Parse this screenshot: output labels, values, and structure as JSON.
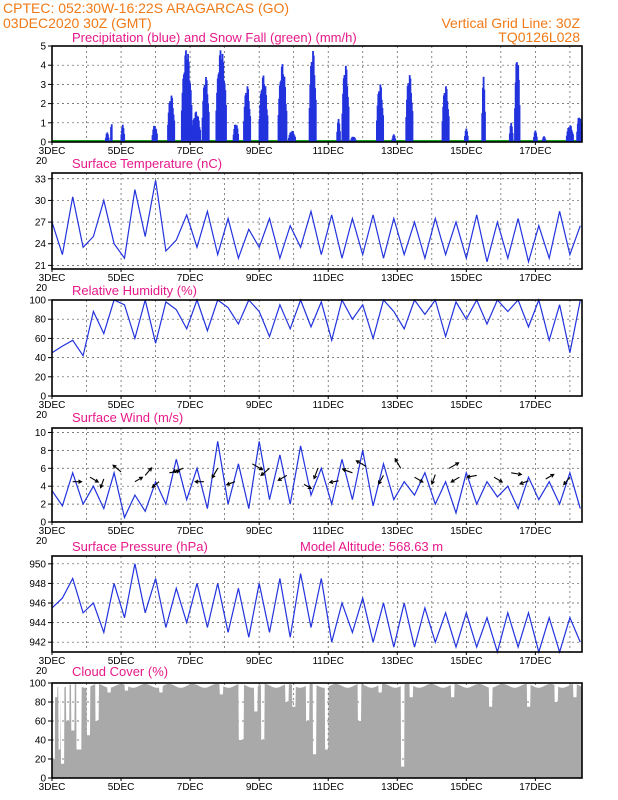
{
  "header": {
    "line1_left": "CPTEC:   052:30W-16:22S   ARAGARCAS (GO)",
    "line2_left": "03DEC2020 30Z (GMT)",
    "line1_right": "Vertical Grid Line: 30Z",
    "line2_right": "TQ0126L028"
  },
  "colors": {
    "header": "#f07a17",
    "title": "#e6198a",
    "series": "#2233dd",
    "snow": "#1aa01a",
    "cloud": "#a9a9a9"
  },
  "x_axis": {
    "days": [
      3,
      18.35
    ],
    "labels": [
      {
        "day": 3,
        "text": "3DEC"
      },
      {
        "day": 5,
        "text": "5DEC"
      },
      {
        "day": 7,
        "text": "7DEC"
      },
      {
        "day": 9,
        "text": "9DEC"
      },
      {
        "day": 11,
        "text": "11DEC"
      },
      {
        "day": 13,
        "text": "13DEC"
      },
      {
        "day": 15,
        "text": "15DEC"
      },
      {
        "day": 17,
        "text": "17DEC"
      }
    ],
    "year_fragment": "20"
  },
  "chart_data": [
    {
      "id": "precip",
      "type": "bar",
      "title": "Precipitation (blue) and Snow Fall (green) (mm/h)",
      "ylim": [
        0,
        5
      ],
      "yticks": [
        0,
        1,
        2,
        3,
        4,
        5
      ],
      "bursts": [
        [
          4.55,
          4.65,
          0.5
        ],
        [
          4.7,
          4.74,
          1.2
        ],
        [
          5.0,
          5.1,
          0.9
        ],
        [
          5.9,
          6.05,
          0.9
        ],
        [
          6.35,
          6.55,
          2.5
        ],
        [
          6.75,
          7.05,
          4.9
        ],
        [
          7.05,
          7.3,
          1.6
        ],
        [
          7.35,
          7.55,
          3.5
        ],
        [
          7.75,
          8.05,
          4.9
        ],
        [
          8.25,
          8.4,
          1.0
        ],
        [
          8.55,
          8.75,
          3.0
        ],
        [
          9.0,
          9.25,
          3.5
        ],
        [
          9.55,
          9.8,
          4.1
        ],
        [
          9.85,
          10.05,
          0.6
        ],
        [
          10.45,
          10.65,
          4.9
        ],
        [
          11.25,
          11.35,
          1.2
        ],
        [
          11.4,
          11.6,
          4.1
        ],
        [
          11.65,
          11.8,
          0.3
        ],
        [
          12.4,
          12.6,
          3.1
        ],
        [
          12.85,
          12.95,
          0.4
        ],
        [
          13.25,
          13.45,
          3.6
        ],
        [
          14.3,
          14.5,
          3.0
        ],
        [
          14.95,
          15.05,
          0.7
        ],
        [
          15.45,
          15.55,
          3.4
        ],
        [
          16.25,
          16.35,
          1.0
        ],
        [
          16.4,
          16.55,
          4.6
        ],
        [
          16.95,
          17.05,
          0.6
        ],
        [
          17.2,
          17.3,
          0.3
        ],
        [
          17.9,
          18.1,
          0.9
        ],
        [
          18.2,
          18.35,
          1.4
        ]
      ]
    },
    {
      "id": "temperature",
      "type": "line",
      "title": "Surface Temperature (nC)",
      "ylim": [
        20.5,
        33.8
      ],
      "yticks": [
        21,
        24,
        27,
        30,
        33
      ],
      "x": [
        3.0,
        3.3,
        3.6,
        3.9,
        4.2,
        4.5,
        4.8,
        5.1,
        5.4,
        5.7,
        6.0,
        6.3,
        6.6,
        6.9,
        7.2,
        7.5,
        7.8,
        8.1,
        8.4,
        8.7,
        9.0,
        9.3,
        9.6,
        9.9,
        10.2,
        10.5,
        10.8,
        11.1,
        11.4,
        11.7,
        12.0,
        12.3,
        12.6,
        12.9,
        13.2,
        13.5,
        13.8,
        14.1,
        14.4,
        14.7,
        15.0,
        15.3,
        15.6,
        15.9,
        16.2,
        16.5,
        16.8,
        17.1,
        17.4,
        17.7,
        18.0,
        18.3
      ],
      "y": [
        27.0,
        22.5,
        30.5,
        23.5,
        25.0,
        30.0,
        24.0,
        22.0,
        31.5,
        25.0,
        32.8,
        23.0,
        24.5,
        28.0,
        23.5,
        28.5,
        22.5,
        27.5,
        22.0,
        26.0,
        23.5,
        27.5,
        22.0,
        26.5,
        23.5,
        28.5,
        22.5,
        28.0,
        22.0,
        27.5,
        22.5,
        28.0,
        22.0,
        27.5,
        22.5,
        27.0,
        22.0,
        27.5,
        22.5,
        27.0,
        22.0,
        28.0,
        21.5,
        27.0,
        22.0,
        27.5,
        21.5,
        26.5,
        22.0,
        28.5,
        22.5,
        26.5
      ]
    },
    {
      "id": "humidity",
      "type": "line",
      "title": "Relative Humidity (%)",
      "ylim": [
        0,
        100
      ],
      "yticks": [
        0,
        20,
        40,
        60,
        80,
        100
      ],
      "x": [
        3.0,
        3.3,
        3.6,
        3.9,
        4.2,
        4.5,
        4.8,
        5.1,
        5.4,
        5.7,
        6.0,
        6.3,
        6.6,
        6.9,
        7.2,
        7.5,
        7.8,
        8.1,
        8.4,
        8.7,
        9.0,
        9.3,
        9.6,
        9.9,
        10.2,
        10.5,
        10.8,
        11.1,
        11.4,
        11.7,
        12.0,
        12.3,
        12.6,
        12.9,
        13.2,
        13.5,
        13.8,
        14.1,
        14.4,
        14.7,
        15.0,
        15.3,
        15.6,
        15.9,
        16.2,
        16.5,
        16.8,
        17.1,
        17.4,
        17.7,
        18.0,
        18.3
      ],
      "y": [
        45,
        52,
        58,
        42,
        88,
        65,
        100,
        95,
        60,
        100,
        55,
        98,
        90,
        70,
        100,
        68,
        100,
        92,
        75,
        100,
        88,
        62,
        95,
        70,
        100,
        72,
        98,
        58,
        100,
        80,
        95,
        60,
        100,
        88,
        70,
        100,
        85,
        100,
        62,
        98,
        80,
        100,
        75,
        100,
        88,
        100,
        72,
        100,
        58,
        95,
        45,
        100
      ]
    },
    {
      "id": "wind",
      "type": "line",
      "title": "Surface Wind (m/s)",
      "ylim": [
        0,
        10.5
      ],
      "yticks": [
        0,
        2,
        4,
        6,
        8,
        10
      ],
      "x": [
        3.0,
        3.3,
        3.6,
        3.9,
        4.2,
        4.5,
        4.8,
        5.1,
        5.4,
        5.7,
        6.0,
        6.3,
        6.6,
        6.9,
        7.2,
        7.5,
        7.8,
        8.1,
        8.4,
        8.7,
        9.0,
        9.3,
        9.6,
        9.9,
        10.2,
        10.5,
        10.8,
        11.1,
        11.4,
        11.7,
        12.0,
        12.3,
        12.6,
        12.9,
        13.2,
        13.5,
        13.8,
        14.1,
        14.4,
        14.7,
        15.0,
        15.3,
        15.6,
        15.9,
        16.2,
        16.5,
        16.8,
        17.1,
        17.4,
        17.7,
        18.0,
        18.3
      ],
      "y": [
        3.5,
        1.8,
        5.5,
        2.0,
        4.0,
        1.5,
        5.5,
        0.5,
        3.0,
        1.2,
        4.5,
        2.0,
        7.0,
        2.5,
        6.0,
        1.5,
        9.0,
        2.0,
        6.5,
        1.5,
        9.0,
        2.5,
        7.5,
        2.0,
        8.5,
        3.0,
        6.0,
        2.0,
        7.0,
        2.5,
        8.0,
        1.8,
        6.5,
        2.5,
        4.5,
        3.0,
        5.5,
        2.0,
        4.5,
        1.0,
        5.5,
        2.0,
        4.5,
        2.8,
        4.0,
        1.5,
        5.0,
        2.5,
        4.5,
        2.0,
        5.5,
        1.5
      ]
    },
    {
      "id": "pressure",
      "type": "line",
      "title": "Surface Pressure (hPa)",
      "annotation": "Model Altitude: 568.63 m",
      "ylim": [
        941,
        950.8
      ],
      "yticks": [
        942,
        944,
        946,
        948,
        950
      ],
      "x": [
        3.0,
        3.3,
        3.6,
        3.9,
        4.2,
        4.5,
        4.8,
        5.1,
        5.4,
        5.7,
        6.0,
        6.3,
        6.6,
        6.9,
        7.2,
        7.5,
        7.8,
        8.1,
        8.4,
        8.7,
        9.0,
        9.3,
        9.6,
        9.9,
        10.2,
        10.5,
        10.8,
        11.1,
        11.4,
        11.7,
        12.0,
        12.3,
        12.6,
        12.9,
        13.2,
        13.5,
        13.8,
        14.1,
        14.4,
        14.7,
        15.0,
        15.3,
        15.6,
        15.9,
        16.2,
        16.5,
        16.8,
        17.1,
        17.4,
        17.7,
        18.0,
        18.3
      ],
      "y": [
        945.5,
        946.5,
        948.5,
        945.0,
        946.0,
        943.0,
        948.0,
        944.5,
        950.0,
        945.0,
        948.5,
        943.5,
        947.5,
        944.0,
        948.0,
        943.5,
        948.0,
        943.0,
        947.5,
        942.5,
        948.0,
        943.0,
        948.5,
        942.5,
        949.0,
        943.5,
        948.5,
        942.0,
        946.0,
        943.0,
        946.5,
        942.0,
        946.0,
        941.5,
        946.0,
        941.5,
        945.5,
        942.0,
        945.0,
        941.5,
        945.0,
        941.5,
        944.5,
        941.0,
        945.0,
        941.5,
        945.0,
        941.0,
        944.5,
        941.0,
        944.5,
        942.0
      ]
    },
    {
      "id": "cloud",
      "type": "area",
      "title": "Cloud Cover (%)",
      "ylim": [
        0,
        100
      ],
      "yticks": [
        0,
        20,
        40,
        60,
        80,
        100
      ],
      "dips": [
        [
          3.0,
          3.08,
          20
        ],
        [
          3.08,
          3.15,
          85
        ],
        [
          3.18,
          3.24,
          30
        ],
        [
          3.25,
          3.35,
          15
        ],
        [
          3.4,
          3.5,
          60
        ],
        [
          3.55,
          3.65,
          50
        ],
        [
          3.7,
          3.85,
          30
        ],
        [
          4.0,
          4.1,
          45
        ],
        [
          4.25,
          4.35,
          60
        ],
        [
          4.6,
          4.7,
          90
        ],
        [
          5.1,
          5.2,
          92
        ],
        [
          6.1,
          6.2,
          90
        ],
        [
          7.85,
          7.95,
          88
        ],
        [
          8.4,
          8.55,
          40
        ],
        [
          8.85,
          8.95,
          70
        ],
        [
          9.05,
          9.15,
          40
        ],
        [
          9.75,
          9.85,
          80
        ],
        [
          9.95,
          10.05,
          75
        ],
        [
          10.35,
          10.45,
          60
        ],
        [
          10.55,
          10.65,
          25
        ],
        [
          10.9,
          11.0,
          30
        ],
        [
          11.85,
          11.95,
          60
        ],
        [
          12.45,
          12.55,
          90
        ],
        [
          13.1,
          13.2,
          12
        ],
        [
          13.35,
          13.45,
          85
        ],
        [
          14.55,
          14.65,
          85
        ],
        [
          15.65,
          15.75,
          75
        ],
        [
          16.75,
          16.85,
          75
        ],
        [
          17.55,
          17.65,
          80
        ],
        [
          18.1,
          18.2,
          85
        ]
      ]
    }
  ]
}
